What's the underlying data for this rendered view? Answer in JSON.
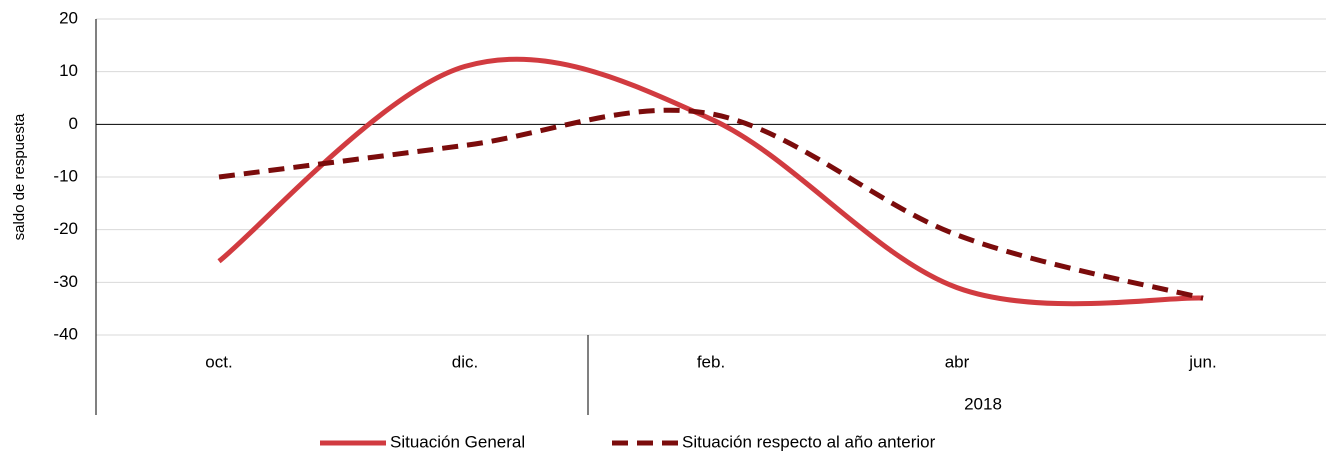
{
  "chart_data": {
    "type": "line",
    "y_label": "saldo de respuesta",
    "categories": [
      "oct.",
      "dic.",
      "feb.",
      "abr",
      "jun."
    ],
    "group": {
      "label": "2018",
      "from": 2
    },
    "series": [
      {
        "name": "Situación General",
        "color": "#d13b40",
        "dash": false,
        "values": [
          -26,
          11,
          1,
          -31,
          -33
        ]
      },
      {
        "name": "Situación respecto al año anterior",
        "color": "#7b0c0c",
        "dash": true,
        "values": [
          -10,
          -4,
          2,
          -21,
          -33
        ]
      }
    ],
    "ylim": [
      -40,
      20
    ],
    "yticks": [
      -40,
      -30,
      -20,
      -10,
      0,
      10,
      20
    ],
    "grid": true,
    "smooth": true,
    "legend": "bottom"
  }
}
